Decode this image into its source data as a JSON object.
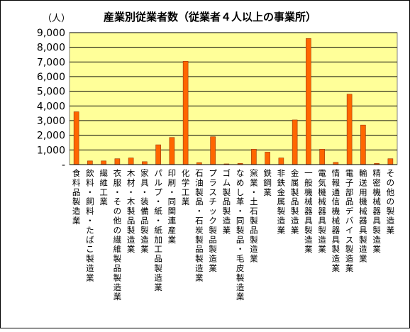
{
  "chart_data": {
    "type": "bar",
    "title": "産業別従業者数（従業者４人以上の事業所）",
    "unit_label": "（人）",
    "ylim": [
      0,
      9000
    ],
    "y_ticks": [
      "9,000",
      "8,000",
      "7,000",
      "6,000",
      "5,000",
      "4,000",
      "3,000",
      "2,000",
      "1,000",
      "-"
    ],
    "y_tick_values": [
      9000,
      8000,
      7000,
      6000,
      5000,
      4000,
      3000,
      2000,
      1000,
      0
    ],
    "grid": true,
    "legend": "none",
    "categories": [
      "食料品製造業",
      "飲料・飼料・たばこ製造業",
      "繊維工業",
      "衣服・その他の繊維製品製造業",
      "木材・木製品製造業",
      "家具・装備品製造業",
      "パルプ・紙・紙加工品製造業",
      "印刷・同関連産業",
      "化学工業",
      "石油製品・石炭製品製造業",
      "プラスチック製品製造業",
      "ゴム製品製造業",
      "なめし革・同製品・毛皮製造業",
      "窯業・土石製品製造業",
      "鉄鋼業",
      "非鉄金属製造業",
      "金属製品製造業",
      "一般機械器具製造業",
      "電気機械器具製造業",
      "情報通信機械器具製造業",
      "電子部品デバイス製造業",
      "輸送用機械器具製造業",
      "精密機械器具製造業",
      "その他の製造業"
    ],
    "values": [
      3600,
      250,
      250,
      400,
      450,
      200,
      1350,
      1850,
      7050,
      130,
      1900,
      50,
      80,
      1050,
      850,
      450,
      3050,
      8600,
      1050,
      150,
      4800,
      2700,
      80,
      400
    ],
    "colors": {
      "bar_fill": "#ff6600",
      "bar_stroke": "#993300",
      "plot_background": "#ffff99",
      "grid": "#000000"
    }
  }
}
